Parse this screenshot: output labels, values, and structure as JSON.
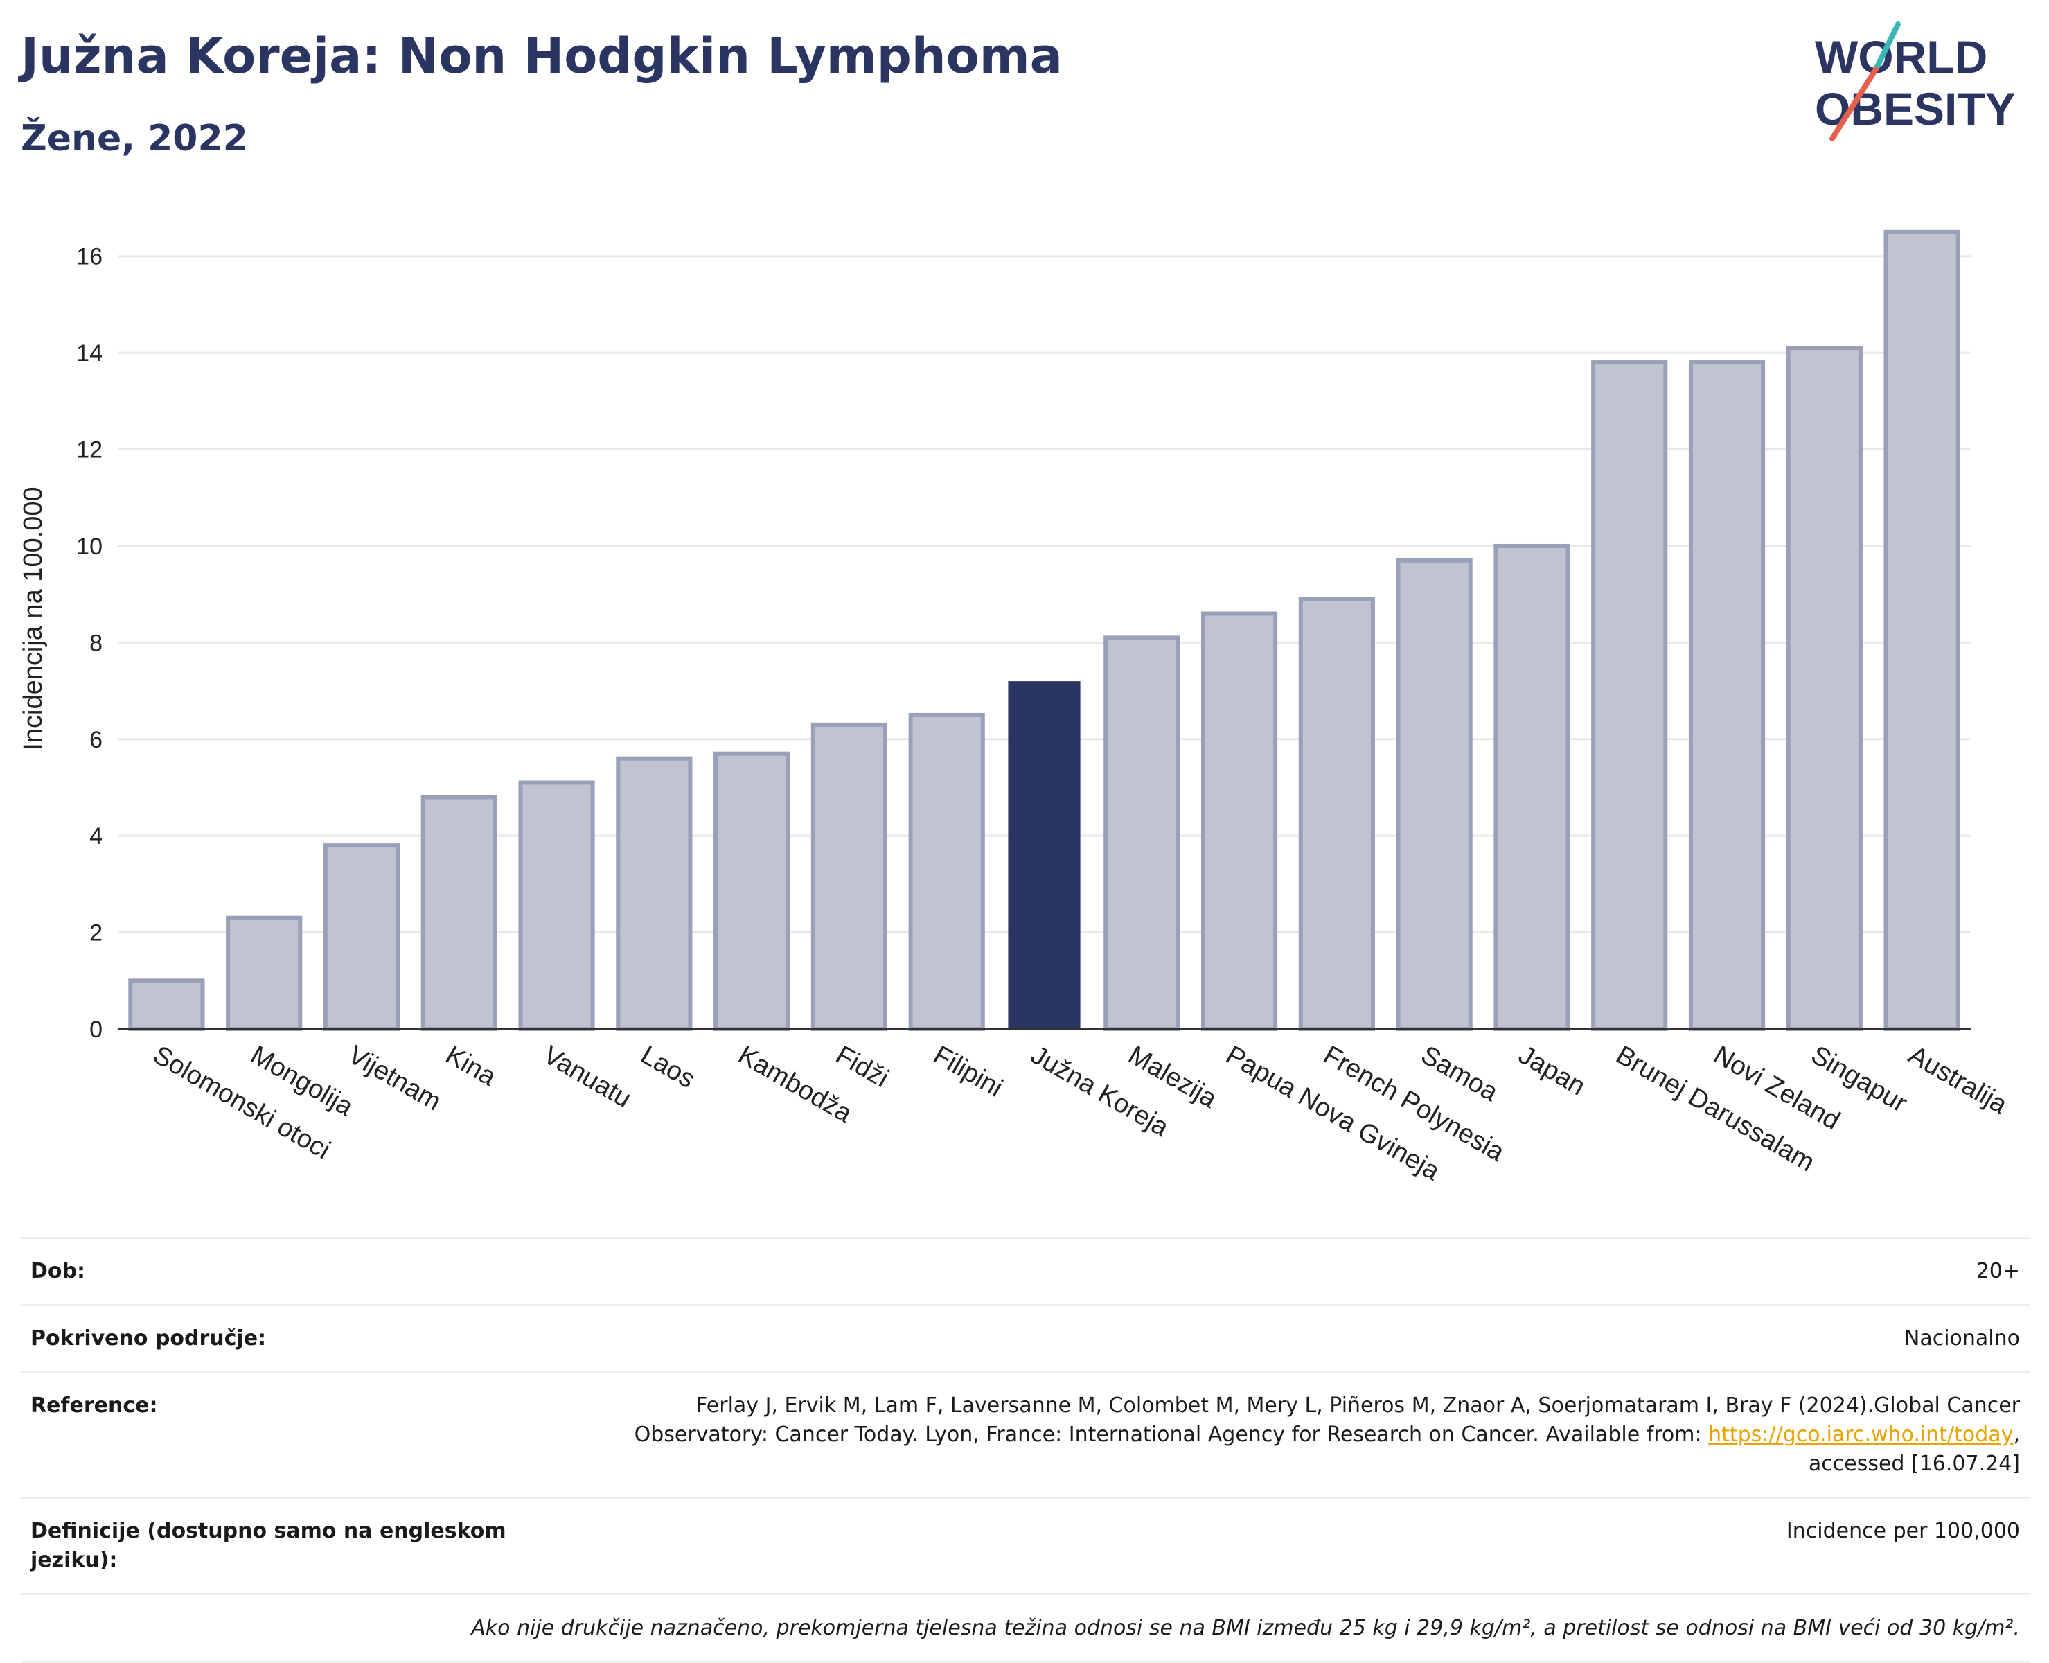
{
  "header": {
    "title": "Južna Koreja: Non Hodgkin Lymphoma",
    "subtitle": "Žene, 2022"
  },
  "logo": {
    "line1": "WORLD",
    "line2": "OBESITY"
  },
  "chart_data": {
    "type": "bar",
    "ylabel": "Incidencija na 100.000",
    "ylim": [
      0,
      17
    ],
    "yticks": [
      0,
      2,
      4,
      6,
      8,
      10,
      12,
      14,
      16
    ],
    "grid": true,
    "highlight": "Južna Koreja",
    "colors": {
      "bar": "#c0c4d1",
      "bar_edge": "#9aa0b8",
      "highlight": "#2b3561"
    },
    "categories": [
      "Solomonski otoci",
      "Mongolija",
      "Vijetnam",
      "Kina",
      "Vanuatu",
      "Laos",
      "Kambodža",
      "Fidži",
      "Filipini",
      "Južna Koreja",
      "Malezija",
      "Papua Nova Gvineja",
      "French Polynesia",
      "Samoa",
      "Japan",
      "Brunej Darussalam",
      "Novi Zeland",
      "Singapur",
      "Australija"
    ],
    "values": [
      1.0,
      2.3,
      3.8,
      4.8,
      5.1,
      5.6,
      5.7,
      6.3,
      6.5,
      7.2,
      8.1,
      8.6,
      8.9,
      9.7,
      10.0,
      13.8,
      13.8,
      14.1,
      16.5
    ]
  },
  "info": {
    "dob_label": "Dob:",
    "dob_value": "20+",
    "area_label": "Pokriveno područje:",
    "area_value": "Nacionalno",
    "ref_label": "Reference:",
    "ref_text1": "Ferlay J, Ervik M, Lam F, Laversanne M, Colombet M, Mery L, Piñeros M, Znaor A, Soerjomataram I, Bray F (2024).Global Cancer Observatory: Cancer Today. Lyon, France: International Agency for Research on Cancer. Available from: ",
    "ref_link": "https://gco.iarc.who.int/today",
    "ref_text2": ", accessed [16.07.24]",
    "def_label": "Definicije (dostupno samo na engleskom jeziku):",
    "def_value": "Incidence per 100,000",
    "note": "Ako nije drukčije naznačeno, prekomjerna tjelesna težina odnosi se na BMI između 25 kg i 29,9 kg/m², a pretilost se odnosi na BMI veći od 30 kg/m²."
  }
}
